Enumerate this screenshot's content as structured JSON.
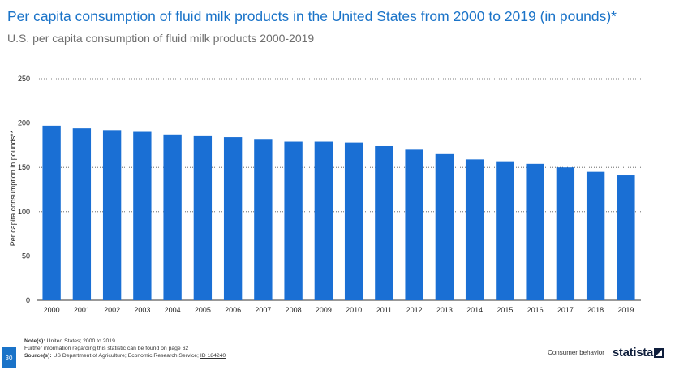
{
  "header": {
    "title": "Per capita consumption of fluid milk products in the United States from 2000 to 2019 (in pounds)*",
    "subtitle": "U.S. per capita consumption of fluid milk products 2000-2019"
  },
  "chart_data": {
    "type": "bar",
    "categories": [
      "2000",
      "2001",
      "2002",
      "2003",
      "2004",
      "2005",
      "2006",
      "2007",
      "2008",
      "2009",
      "2010",
      "2011",
      "2012",
      "2013",
      "2014",
      "2015",
      "2016",
      "2017",
      "2018",
      "2019"
    ],
    "values": [
      197,
      194,
      192,
      190,
      187,
      186,
      184,
      182,
      179,
      179,
      178,
      174,
      170,
      165,
      159,
      156,
      154,
      150,
      145,
      141
    ],
    "ylabel": "Per capita consumption in pounds**",
    "xlabel": "",
    "ylim": [
      0,
      250
    ],
    "yticks": [
      0,
      50,
      100,
      150,
      200,
      250
    ],
    "grid": true,
    "bar_color": "#1a6fd4"
  },
  "footer": {
    "page_number": "30",
    "notes_label": "Note(s):",
    "notes_text": " United States; 2000 to 2019",
    "further_info_text": "Further information regarding this statistic can be found on ",
    "further_info_link": "page 62",
    "source_label": "Source(s):",
    "source_text": " US Department of Agriculture; Economic Research Service; ",
    "source_id": "ID 184240",
    "category": "Consumer behavior",
    "brand": "statista",
    "brand_icon": "statista-logo-icon"
  }
}
